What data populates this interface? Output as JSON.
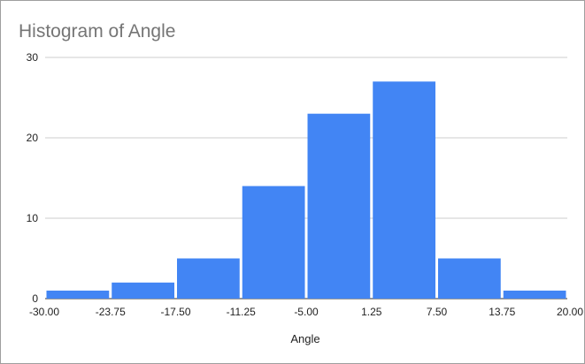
{
  "chart_data": {
    "type": "bar",
    "title": "Histogram of Angle",
    "xlabel": "Angle",
    "ylabel": "",
    "bin_edges": [
      -30.0,
      -23.75,
      -17.5,
      -11.25,
      -5.0,
      1.25,
      7.5,
      13.75,
      20.0
    ],
    "x_tick_labels": [
      "-30.00",
      "-23.75",
      "-17.50",
      "-11.25",
      "-5.00",
      "1.25",
      "7.50",
      "13.75",
      "20.00"
    ],
    "values": [
      1,
      2,
      5,
      14,
      23,
      27,
      5,
      1
    ],
    "y_ticks": [
      0,
      10,
      20,
      30
    ],
    "ylim": [
      0,
      30
    ],
    "xlim": [
      -30,
      20
    ],
    "grid": true,
    "legend": "none",
    "bar_color": "#4285f4",
    "title_color": "#757575"
  }
}
